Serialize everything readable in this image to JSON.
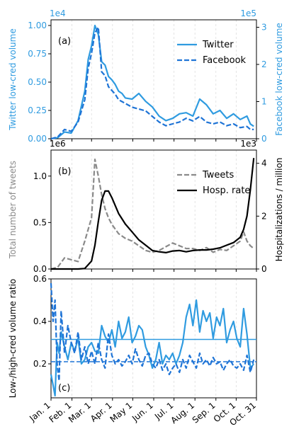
{
  "x_tick_labels": [
    "Jan. 1",
    "Feb. 1",
    "Mar. 1",
    "Apr. 1",
    "May 1",
    "Jun. 1",
    "Jul. 1",
    "Aug. 1",
    "Sep. 1",
    "Oct. 1",
    "Oct. 31"
  ],
  "colors": {
    "twitter": "#2f9be0",
    "facebook": "#1f74d6",
    "tweets": "#8a8a8a",
    "hosp": "#000000"
  },
  "chart_data": [
    {
      "type": "line",
      "panel_label": "(a)",
      "ylabel": "Twitter low-cred volume",
      "ylabel2": "Facebook low-cred volume",
      "exponent_left": "1e4",
      "exponent_right": "1e5",
      "ylim": [
        0,
        1.05
      ],
      "ylim2": [
        0,
        3.2
      ],
      "yticks": [
        "0.00",
        "0.25",
        "0.50",
        "0.75",
        "1.00"
      ],
      "yticks2": [
        "0",
        "1",
        "2",
        "3"
      ],
      "legend_position": "top-right",
      "x": [
        0,
        10,
        20,
        30,
        40,
        50,
        55,
        60,
        65,
        70,
        75,
        80,
        85,
        90,
        95,
        100,
        105,
        110,
        120,
        130,
        140,
        150,
        160,
        170,
        180,
        190,
        200,
        210,
        220,
        230,
        240,
        250,
        260,
        270,
        280,
        290,
        295,
        300
      ],
      "series": [
        {
          "name": "Twitter",
          "style": "solid",
          "axis": "left",
          "values": [
            0.0,
            0.01,
            0.06,
            0.05,
            0.16,
            0.42,
            0.7,
            0.82,
            1.0,
            0.92,
            0.68,
            0.65,
            0.55,
            0.52,
            0.48,
            0.42,
            0.4,
            0.36,
            0.35,
            0.4,
            0.33,
            0.28,
            0.2,
            0.16,
            0.18,
            0.22,
            0.23,
            0.2,
            0.35,
            0.3,
            0.22,
            0.25,
            0.18,
            0.22,
            0.17,
            0.2,
            0.13,
            0.11
          ]
        },
        {
          "name": "Facebook",
          "style": "dashed",
          "axis": "right",
          "values": [
            0.0,
            0.05,
            0.25,
            0.2,
            0.45,
            1.05,
            1.9,
            2.3,
            2.85,
            3.0,
            1.8,
            1.7,
            1.4,
            1.3,
            1.2,
            1.05,
            1.0,
            0.95,
            0.85,
            0.8,
            0.75,
            0.6,
            0.45,
            0.35,
            0.4,
            0.45,
            0.55,
            0.48,
            0.6,
            0.45,
            0.4,
            0.45,
            0.35,
            0.4,
            0.3,
            0.33,
            0.25,
            0.25
          ]
        }
      ]
    },
    {
      "type": "line",
      "panel_label": "(b)",
      "ylabel": "Total number of tweets",
      "ylabel2": "Hospitalizations / million",
      "exponent_left": "1e6",
      "exponent_right": "1e3",
      "ylim": [
        0,
        1.28
      ],
      "ylim2": [
        0,
        4.5
      ],
      "yticks": [
        "0.0",
        "0.5",
        "1.0"
      ],
      "yticks2": [
        "0",
        "2",
        "4"
      ],
      "legend_position": "top-right",
      "x": [
        0,
        10,
        20,
        30,
        40,
        50,
        60,
        65,
        70,
        75,
        80,
        85,
        90,
        100,
        110,
        120,
        130,
        140,
        150,
        160,
        170,
        180,
        190,
        200,
        210,
        220,
        230,
        240,
        250,
        260,
        270,
        280,
        285,
        290,
        295,
        300
      ],
      "series": [
        {
          "name": "Tweets",
          "style": "dashed",
          "axis": "left",
          "values": [
            0.0,
            0.02,
            0.12,
            0.1,
            0.08,
            0.3,
            0.55,
            1.18,
            1.0,
            0.8,
            0.65,
            0.55,
            0.48,
            0.38,
            0.33,
            0.3,
            0.25,
            0.2,
            0.18,
            0.2,
            0.24,
            0.28,
            0.25,
            0.22,
            0.22,
            0.2,
            0.23,
            0.18,
            0.21,
            0.2,
            0.25,
            0.3,
            0.4,
            0.3,
            0.25,
            0.22
          ]
        },
        {
          "name": "Hosp. rate",
          "style": "solid",
          "axis": "right",
          "values": [
            0.0,
            0.0,
            0.0,
            0.0,
            0.0,
            0.02,
            0.3,
            0.9,
            1.8,
            2.6,
            2.95,
            2.95,
            2.7,
            2.1,
            1.7,
            1.4,
            1.1,
            0.9,
            0.7,
            0.65,
            0.62,
            0.68,
            0.7,
            0.65,
            0.7,
            0.72,
            0.72,
            0.75,
            0.8,
            0.9,
            1.0,
            1.2,
            1.5,
            2.0,
            3.0,
            4.2
          ]
        }
      ]
    },
    {
      "type": "line",
      "panel_label": "(c)",
      "ylabel": "Low-/high-cred volume ratio",
      "ylim": [
        0.04,
        0.6
      ],
      "yticks": [
        "0.2",
        "0.4",
        "0.6"
      ],
      "hlines": [
        {
          "axis": "Twitter",
          "y": 0.315
        },
        {
          "axis": "Facebook",
          "y": 0.21
        }
      ],
      "x": [
        0,
        3,
        6,
        9,
        12,
        15,
        20,
        25,
        30,
        35,
        40,
        45,
        50,
        55,
        60,
        65,
        70,
        75,
        80,
        85,
        90,
        95,
        100,
        105,
        110,
        115,
        120,
        125,
        130,
        135,
        140,
        145,
        150,
        155,
        160,
        165,
        170,
        175,
        180,
        185,
        190,
        195,
        200,
        205,
        210,
        215,
        220,
        225,
        230,
        235,
        240,
        245,
        250,
        255,
        260,
        265,
        270,
        275,
        280,
        285,
        290,
        295,
        300
      ],
      "series": [
        {
          "name": "Twitter",
          "style": "solid",
          "values": [
            0.15,
            0.1,
            0.05,
            0.3,
            0.25,
            0.35,
            0.28,
            0.22,
            0.3,
            0.26,
            0.32,
            0.2,
            0.22,
            0.28,
            0.3,
            0.26,
            0.25,
            0.38,
            0.33,
            0.3,
            0.36,
            0.28,
            0.4,
            0.32,
            0.35,
            0.42,
            0.3,
            0.33,
            0.38,
            0.36,
            0.28,
            0.24,
            0.18,
            0.22,
            0.3,
            0.2,
            0.24,
            0.22,
            0.25,
            0.2,
            0.24,
            0.3,
            0.42,
            0.48,
            0.38,
            0.5,
            0.35,
            0.45,
            0.4,
            0.44,
            0.32,
            0.42,
            0.38,
            0.46,
            0.3,
            0.36,
            0.4,
            0.32,
            0.28,
            0.46,
            0.34,
            0.18,
            0.2
          ]
        },
        {
          "name": "Facebook",
          "style": "dashed",
          "values": [
            0.58,
            0.4,
            0.5,
            0.2,
            0.12,
            0.45,
            0.25,
            0.38,
            0.3,
            0.25,
            0.35,
            0.22,
            0.28,
            0.2,
            0.26,
            0.2,
            0.3,
            0.22,
            0.18,
            0.34,
            0.24,
            0.2,
            0.22,
            0.19,
            0.21,
            0.24,
            0.2,
            0.27,
            0.22,
            0.19,
            0.24,
            0.25,
            0.2,
            0.18,
            0.22,
            0.17,
            0.2,
            0.15,
            0.18,
            0.2,
            0.16,
            0.22,
            0.18,
            0.24,
            0.21,
            0.18,
            0.25,
            0.2,
            0.22,
            0.19,
            0.23,
            0.2,
            0.21,
            0.17,
            0.2,
            0.22,
            0.19,
            0.18,
            0.2,
            0.17,
            0.24,
            0.16,
            0.22
          ]
        }
      ]
    }
  ]
}
